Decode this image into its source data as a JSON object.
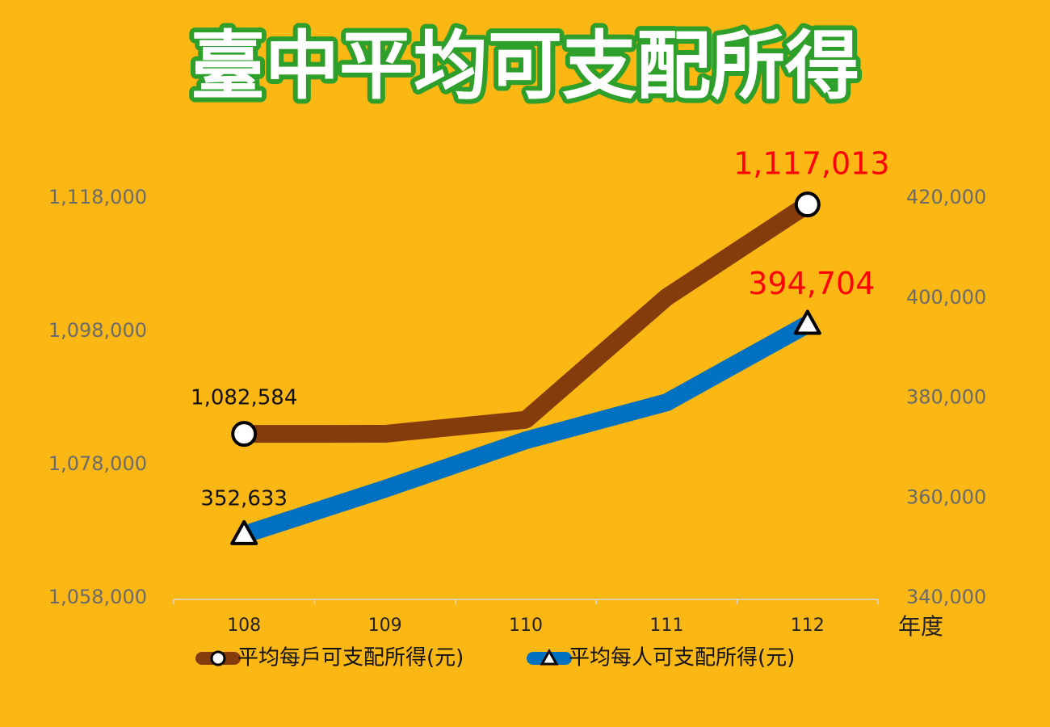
{
  "chart_data": {
    "type": "line",
    "title": "臺中平均可支配所得",
    "xlabel": "年度",
    "categories": [
      "108",
      "109",
      "110",
      "111",
      "112"
    ],
    "series": [
      {
        "name": "平均每戶可支配所得(元)",
        "color": "#843c0c",
        "marker": "circle",
        "axis": "y",
        "values": [
          1082584,
          1082600,
          1084700,
          1103100,
          1117013
        ],
        "value_labels": [
          "1,082,584",
          null,
          null,
          null,
          "1,117,013"
        ]
      },
      {
        "name": "平均每人可支配所得(元)",
        "color": "#0070c0",
        "marker": "triangle",
        "axis": "y2",
        "values": [
          352633,
          361800,
          371500,
          379100,
          394704
        ],
        "value_labels": [
          "352,633",
          null,
          null,
          null,
          "394,704"
        ]
      }
    ],
    "ylim": [
      1058000,
      1118000
    ],
    "yticks": [
      {
        "value": 1058000,
        "label": "1,058,000"
      },
      {
        "value": 1078000,
        "label": "1,078,000"
      },
      {
        "value": 1098000,
        "label": "1,098,000"
      },
      {
        "value": 1118000,
        "label": "1,118,000"
      }
    ],
    "y2lim": [
      340000,
      420000
    ],
    "y2ticks": [
      {
        "value": 340000,
        "label": "340,000"
      },
      {
        "value": 360000,
        "label": "360,000"
      },
      {
        "value": 380000,
        "label": "380,000"
      },
      {
        "value": 400000,
        "label": "400,000"
      },
      {
        "value": 420000,
        "label": "420,000"
      }
    ],
    "grid": false,
    "legend": "bottom"
  }
}
